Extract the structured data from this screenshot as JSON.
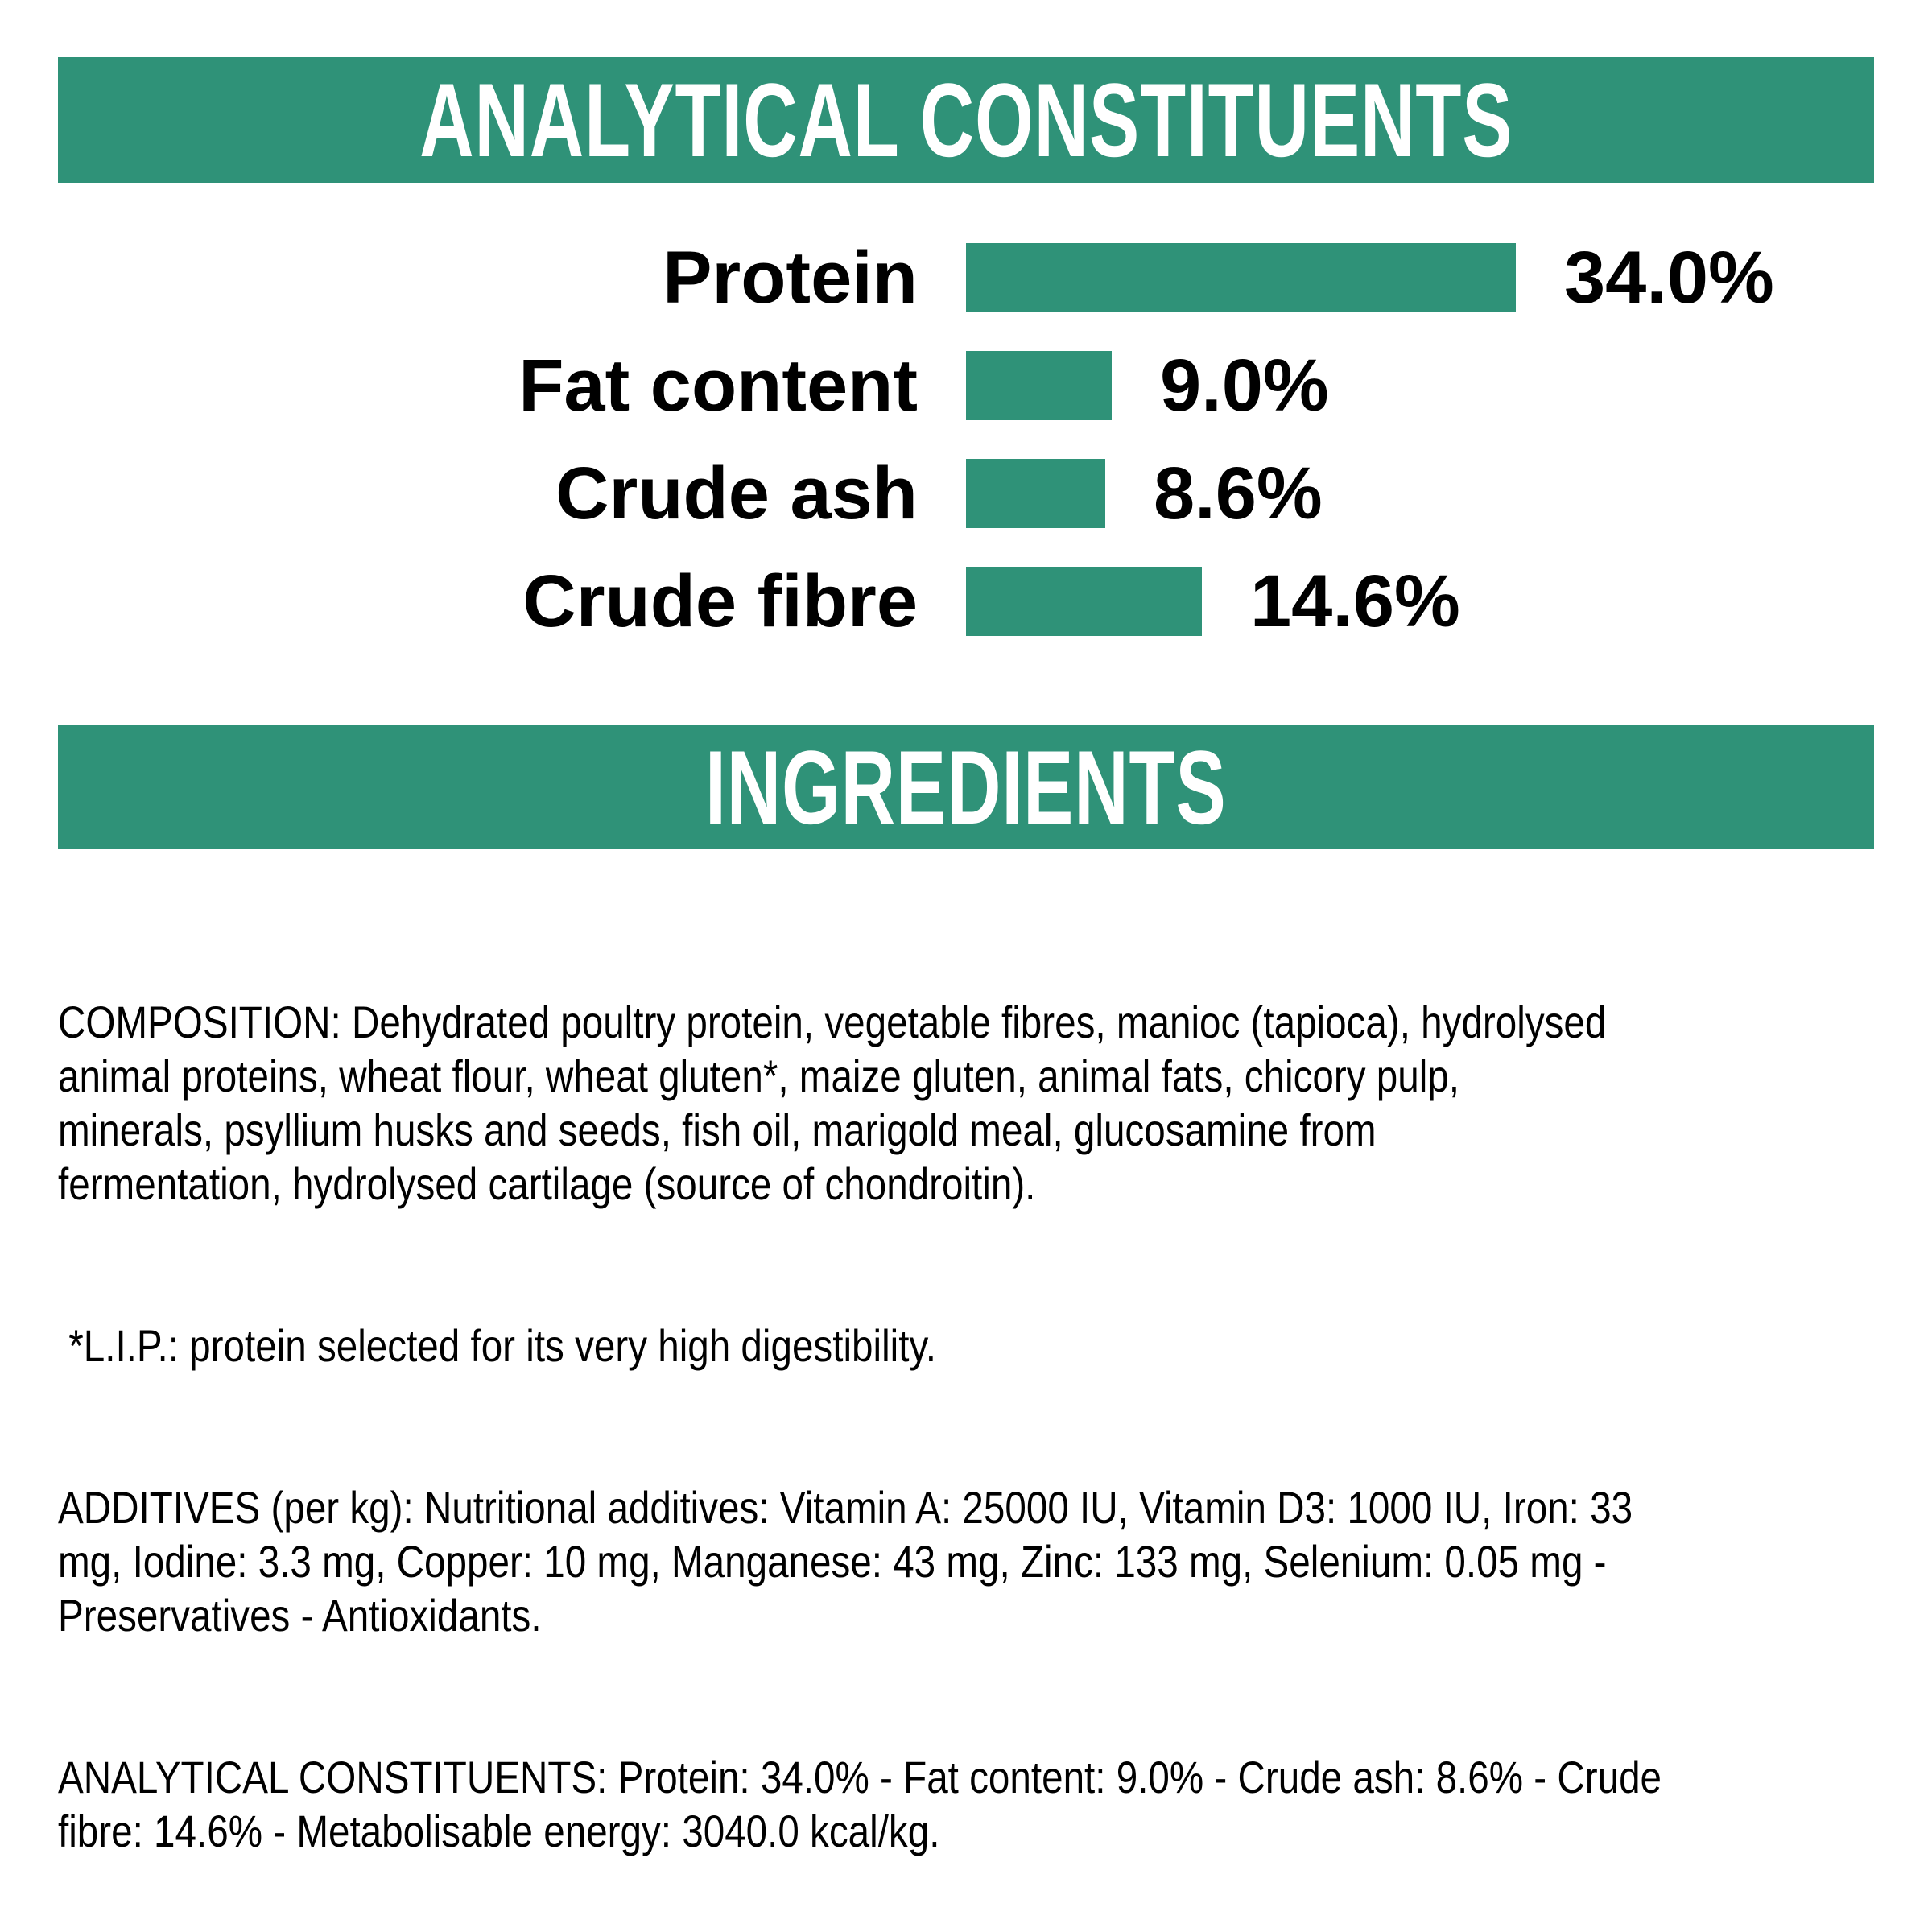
{
  "page": {
    "background": "#ffffff",
    "accent_green": "#2F9278",
    "text_color": "#000000",
    "banner_text_color": "#ffffff"
  },
  "sections": {
    "analytical": {
      "title": "ANALYTICAL CONSTITUENTS"
    },
    "ingredients": {
      "title": "INGREDIENTS"
    }
  },
  "chart_data": {
    "type": "bar",
    "orientation": "horizontal",
    "title": "ANALYTICAL CONSTITUENTS",
    "categories": [
      "Protein",
      "Fat content",
      "Crude ash",
      "Crude fibre"
    ],
    "values": [
      34.0,
      9.0,
      8.6,
      14.6
    ],
    "value_labels": [
      "34.0%",
      "9.0%",
      "8.6%",
      "14.6%"
    ],
    "unit": "%",
    "xlim": [
      0,
      34
    ],
    "bar_color": "#2F9278",
    "label_color": "#000000",
    "grid": false,
    "legend": false,
    "value_label_position": "right-of-bar"
  },
  "ingredients_text": {
    "paragraphs": [
      {
        "name": "composition",
        "lines": [
          "COMPOSITION: Dehydrated poultry protein, vegetable fibres, manioc (tapioca), hydrolysed",
          "animal proteins, wheat flour, wheat gluten*, maize gluten, animal fats, chicory pulp,",
          "minerals, psyllium husks and seeds, fish oil, marigold meal, glucosamine from",
          "fermentation, hydrolysed cartilage (source of chondroitin)."
        ]
      },
      {
        "name": "lip-note",
        "lines": [
          " *L.I.P.: protein selected for its very high digestibility."
        ]
      },
      {
        "name": "additives",
        "lines": [
          "ADDITIVES (per kg): Nutritional additives: Vitamin A: 25000 IU, Vitamin D3: 1000 IU, Iron: 33",
          "mg, Iodine: 3.3 mg, Copper: 10 mg, Manganese: 43 mg, Zinc: 133 mg, Selenium: 0.05 mg -",
          "Preservatives - Antioxidants."
        ]
      },
      {
        "name": "analytical-summary",
        "lines": [
          "ANALYTICAL CONSTITUENTS: Protein: 34.0% - Fat content: 9.0% - Crude ash: 8.6% - Crude",
          "fibre: 14.6% - Metabolisable energy: 3040.0 kcal/kg."
        ]
      }
    ]
  }
}
